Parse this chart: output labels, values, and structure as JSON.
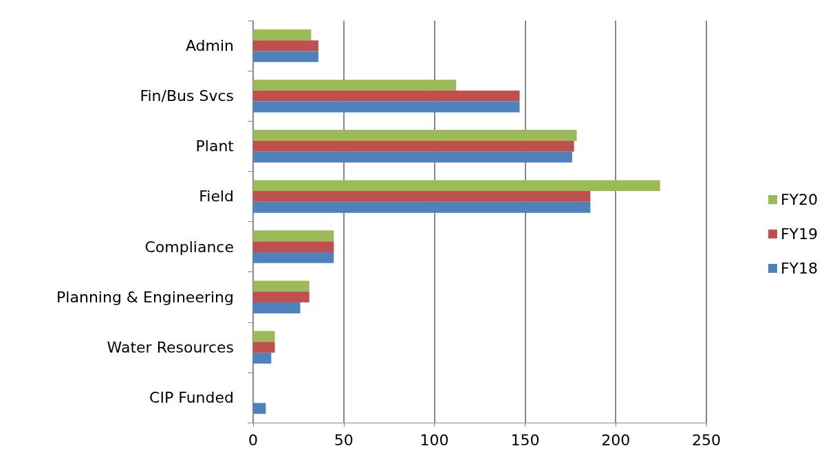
{
  "chart_data": {
    "type": "bar",
    "orientation": "horizontal",
    "categories": [
      "Admin",
      "Fin/Bus Svcs",
      "Plant",
      "Field",
      "Compliance",
      "Planning & Engineering",
      "Water Resources",
      "CIP Funded"
    ],
    "series": [
      {
        "name": "FY20",
        "color": "#9bbb59",
        "values": [
          32,
          112,
          178.5,
          224.5,
          44.5,
          31,
          12,
          0
        ]
      },
      {
        "name": "FY19",
        "color": "#c0504d",
        "values": [
          36,
          147,
          177,
          186,
          44.5,
          31,
          12,
          0
        ]
      },
      {
        "name": "FY18",
        "color": "#4f81bd",
        "values": [
          36,
          147,
          176,
          186,
          44.5,
          26,
          10,
          7
        ]
      }
    ],
    "xlim": [
      0,
      250
    ],
    "xticks": [
      0,
      50,
      100,
      150,
      200,
      250
    ],
    "grid": "x",
    "legend": "right"
  }
}
